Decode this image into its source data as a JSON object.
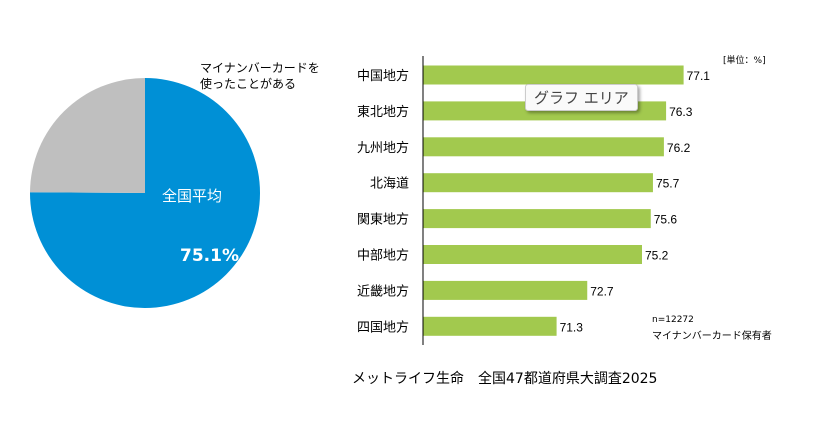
{
  "chart_data": [
    {
      "type": "pie",
      "slices": [
        {
          "label": "マイナンバーカードを使ったことがある",
          "value": 75.1,
          "color": "#0090D6"
        },
        {
          "label": "",
          "value": 24.9,
          "color": "#BFBFBF"
        }
      ],
      "legend_label": "マイナンバーカードを\n使ったことがある",
      "center_label": "全国平均",
      "value_label": "75.1%"
    },
    {
      "type": "bar",
      "orientation": "horizontal",
      "categories": [
        "中国地方",
        "東北地方",
        "九州地方",
        "北海道",
        "関東地方",
        "中部地方",
        "近畿地方",
        "四国地方"
      ],
      "values": [
        77.1,
        76.3,
        76.2,
        75.7,
        75.6,
        75.2,
        72.7,
        71.3
      ],
      "color": "#A2C94E",
      "unit_label": "[単位：%]",
      "note_n": "n=12272",
      "note_group": "マイナンバーカード保有者",
      "xlim": [
        65.2,
        79
      ]
    }
  ],
  "tooltip": "グラフ エリア",
  "source": "メットライフ生命　全国47都道府県大調査2025"
}
